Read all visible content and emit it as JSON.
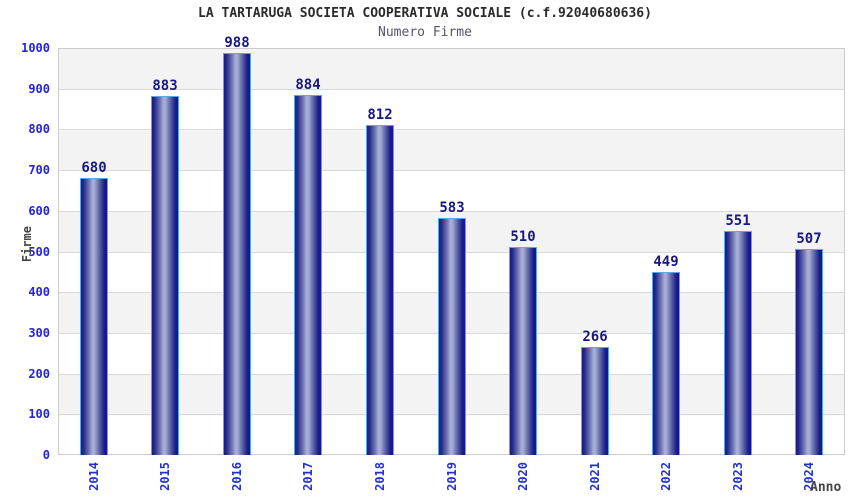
{
  "header": {
    "title": "LA TARTARUGA SOCIETA COOPERATIVA SOCIALE (c.f.92040680636)",
    "subtitle": "Numero Firme"
  },
  "chart_data": {
    "type": "bar",
    "title": "LA TARTARUGA SOCIETA COOPERATIVA SOCIALE (c.f.92040680636)",
    "subtitle": "Numero Firme",
    "categories": [
      "2014",
      "2015",
      "2016",
      "2017",
      "2018",
      "2019",
      "2020",
      "2021",
      "2022",
      "2023",
      "2024"
    ],
    "values": [
      680,
      883,
      988,
      884,
      812,
      583,
      510,
      266,
      449,
      551,
      507
    ],
    "xlabel": "Anno",
    "ylabel": "Firme",
    "ylim": [
      0,
      1000
    ],
    "y_ticks": [
      0,
      100,
      200,
      300,
      400,
      500,
      600,
      700,
      800,
      900,
      1000
    ],
    "grid": true,
    "legend": false,
    "band_pattern": "alternating gray/white horizontal bands every 100 units, gray band from 900-1000",
    "colors": {
      "title": "#2b2b2b",
      "subtitle": "#555566",
      "tick_label": "#2222dd",
      "category_label": "#2233cc",
      "value_label": "#18187d",
      "axis_label": "#444444",
      "bar_border": "#55a8f0",
      "bar_dark": "#1a1a7c",
      "bar_mid": "#6b73b2",
      "bar_light": "#adb3da",
      "bar_right_edge": "#1212a6",
      "band_gray": "#f3f3f3",
      "band_white": "#ffffff",
      "grid_line": "#d9d9d9",
      "plot_border": "#cccccc"
    }
  }
}
